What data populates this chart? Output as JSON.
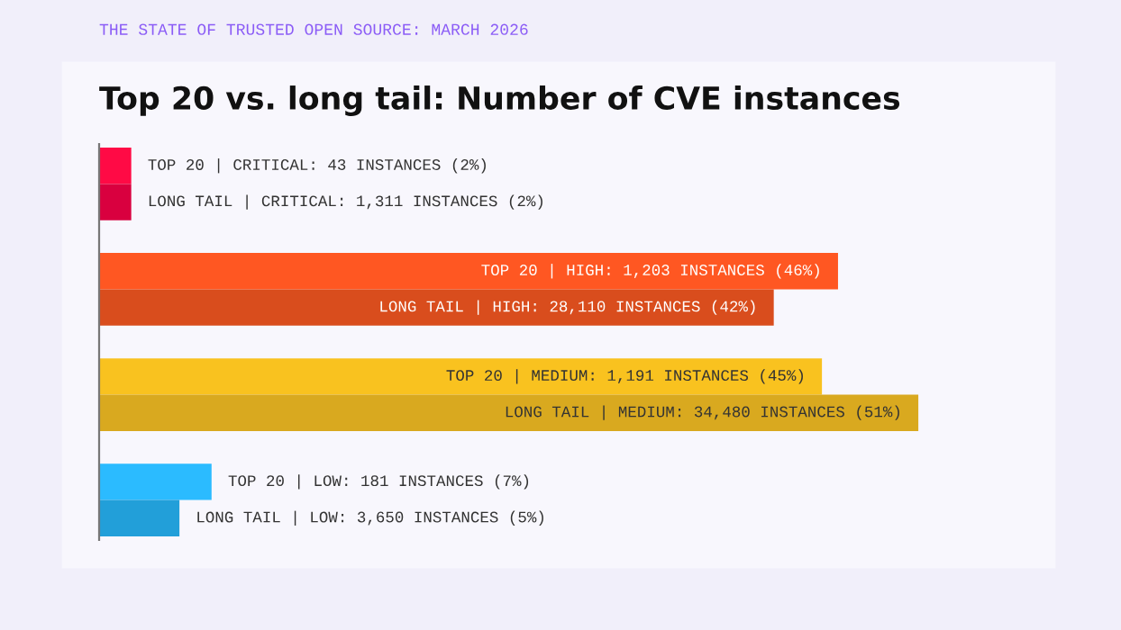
{
  "chart_data": {
    "type": "bar",
    "orientation": "horizontal",
    "title": "Top 20 vs. long tail: Number of CVE instances",
    "subtitle": "THE STATE OF TRUSTED OPEN SOURCE: MARCH 2026",
    "categories": [
      null,
      null,
      null,
      null,
      null,
      null,
      null,
      null
    ],
    "values": [
      2,
      2,
      46,
      42,
      45,
      51,
      7,
      5
    ],
    "colors": [
      "#ff0a45",
      "#d9003f",
      "#ff5722",
      "#d94d1d",
      "#f9c21f",
      "#d9a91f",
      "#2bbbff",
      "#229fd9"
    ],
    "value_labels": [
      "TOP 20 | CRITICAL: 43 INSTANCES (2%)",
      "LONG TAIL | CRITICAL: 1,311 INSTANCES (2%)",
      "TOP 20 | HIGH: 1,203 INSTANCES (46%)",
      "LONG TAIL | HIGH: 28,110 INSTANCES (42%)",
      "TOP 20 | MEDIUM: 1,191 INSTANCES (45%)",
      "LONG TAIL | MEDIUM: 34,480 INSTANCES (51%)",
      "TOP 20 | LOW: 181 INSTANCES (7%)",
      "LONG TAIL | LOW: 3,650 INSTANCES (5%)"
    ]
  }
}
